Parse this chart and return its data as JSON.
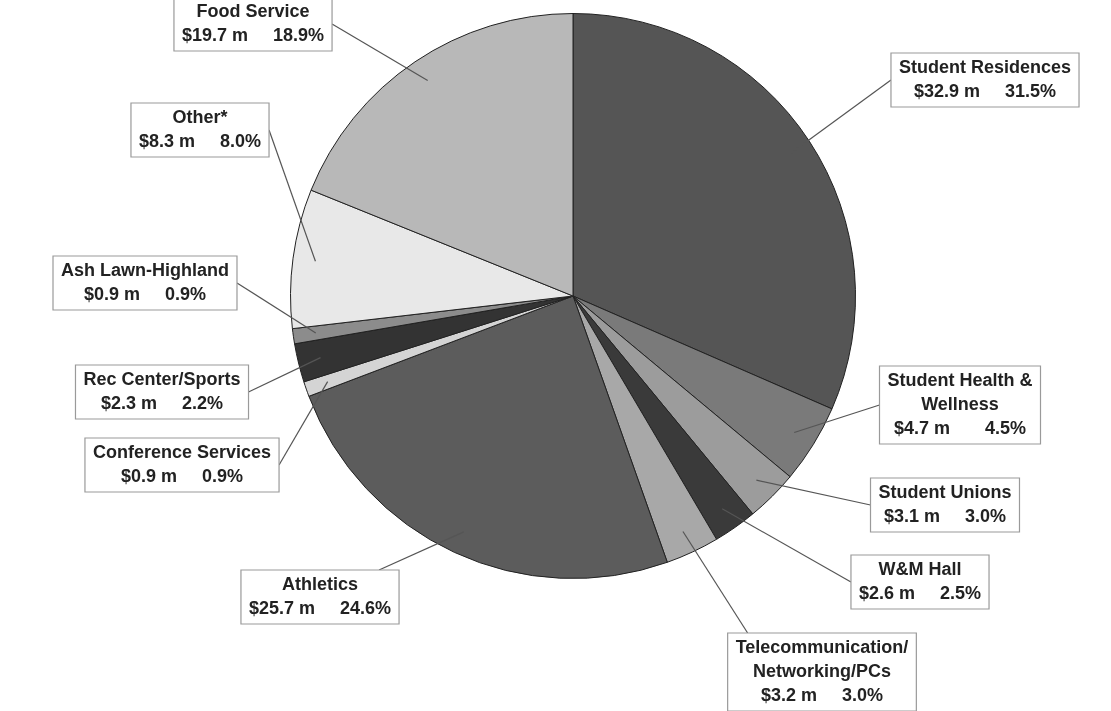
{
  "chart_data": {
    "type": "pie",
    "categories": [
      "Student Residences",
      "Student Health & Wellness",
      "Student Unions",
      "W&M Hall",
      "Telecommunication/ Networking/PCs",
      "Athletics",
      "Conference Services",
      "Rec Center/Sports",
      "Ash Lawn-Highland",
      "Other*",
      "Food Service"
    ],
    "values": [
      32.9,
      4.7,
      3.1,
      2.6,
      3.2,
      25.7,
      0.9,
      2.3,
      0.9,
      8.3,
      19.7
    ],
    "value_labels": [
      "$32.9 m     31.5%",
      "$4.7 m       4.5%",
      "$3.1 m     3.0%",
      "$2.6 m     2.5%",
      "$3.2 m     3.0%",
      "$25.7 m     24.6%",
      "$0.9 m     0.9%",
      "$2.3 m     2.2%",
      "$0.9 m     0.9%",
      "$8.3 m     8.0%",
      "$19.7 m     18.9%"
    ],
    "colors": [
      "#555555",
      "#7a7a7a",
      "#9c9c9c",
      "#3a3a3a",
      "#a8a8a8",
      "#5c5c5c",
      "#d4d4d4",
      "#333333",
      "#8c8c8c",
      "#e8e8e8",
      "#b8b8b8"
    ],
    "legend": false
  }
}
